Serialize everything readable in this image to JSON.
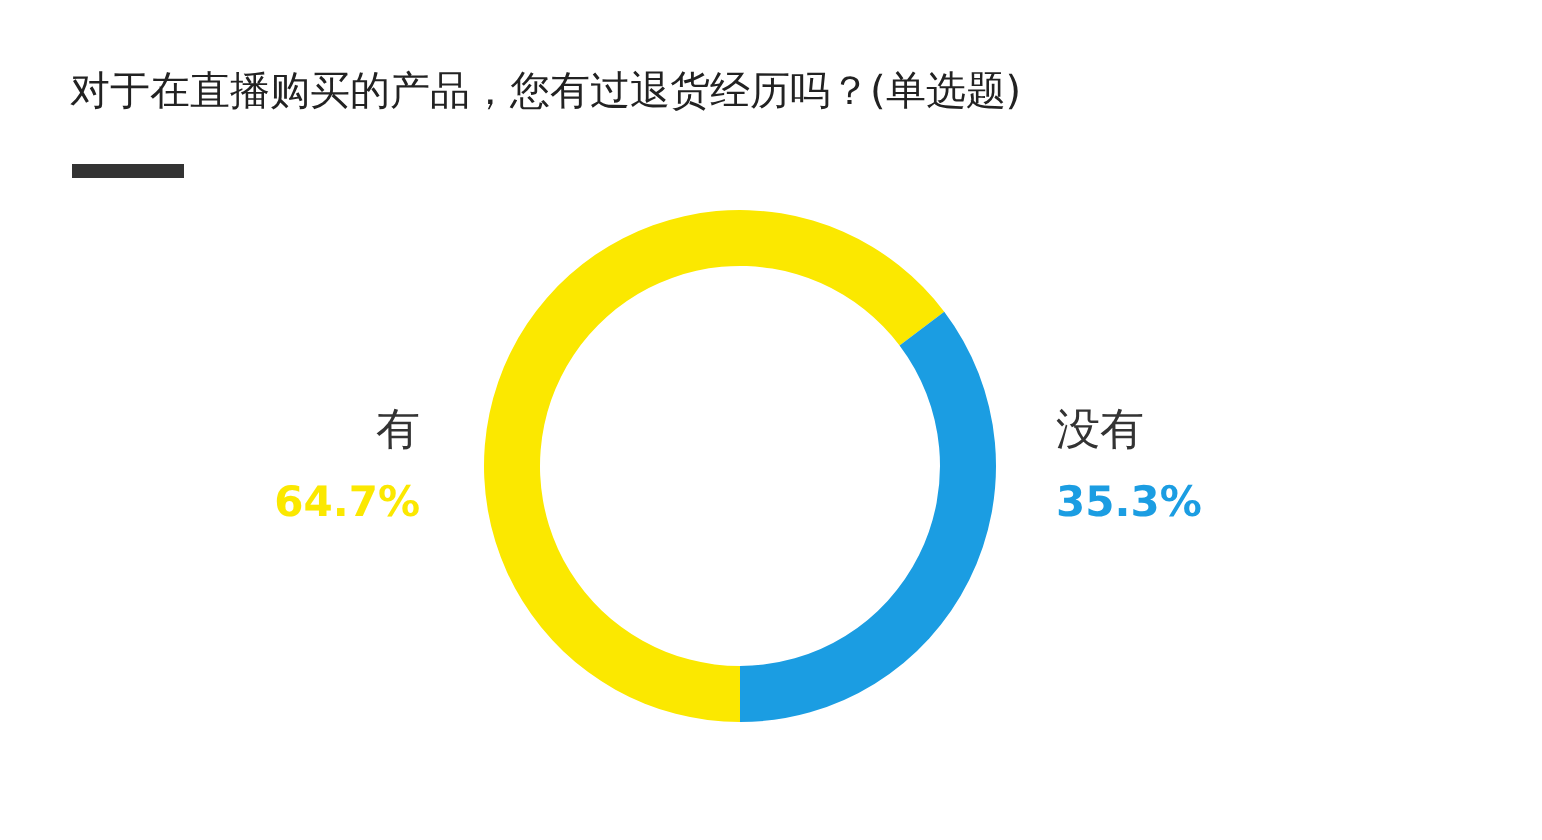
{
  "chart_data": {
    "type": "donut",
    "title": "对于在直播购买的产品，您有过退货经历吗？(单选题)",
    "categories": [
      "有",
      "没有"
    ],
    "values": [
      64.7,
      35.3
    ],
    "colors": [
      "#fbe800",
      "#1b9de2"
    ],
    "value_labels": [
      "64.7%",
      "35.3%"
    ]
  }
}
